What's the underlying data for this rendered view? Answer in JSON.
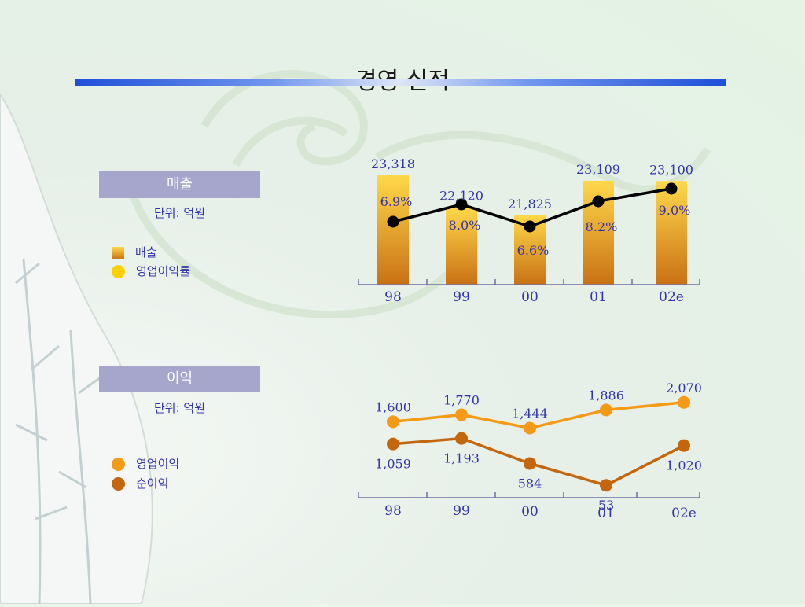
{
  "title": "경영 실적",
  "sections": {
    "sales": {
      "header": "매출",
      "unit": "단위: 억원",
      "legend": [
        "매출",
        "영업이익률"
      ]
    },
    "profit": {
      "header": "이익",
      "unit": "단위: 억원",
      "legend": [
        "영업이익",
        "순이익"
      ]
    }
  },
  "colors": {
    "bar_top": "#ffd84a",
    "bar_bottom": "#c97114",
    "margin_line": "#000000",
    "op_profit": "#f59a16",
    "net_profit": "#c4660d",
    "label": "#3333aa",
    "legend_margin_dot": "#ffd000"
  },
  "chart_data": [
    {
      "type": "bar",
      "categories": [
        "98",
        "99",
        "00",
        "01",
        "02e"
      ],
      "series": [
        {
          "name": "매출",
          "values": [
            23318,
            22120,
            21825,
            23109,
            23100
          ],
          "labels": [
            "23,318",
            "22,120",
            "21,825",
            "23,109",
            "23,100"
          ]
        },
        {
          "name": "영업이익률",
          "type": "line",
          "values": [
            6.9,
            8.0,
            6.6,
            8.2,
            9.0
          ],
          "labels": [
            "6.9%",
            "8.0%",
            "6.6%",
            "8.2%",
            "9.0%"
          ]
        }
      ]
    },
    {
      "type": "line",
      "categories": [
        "98",
        "99",
        "00",
        "01",
        "02e"
      ],
      "series": [
        {
          "name": "영업이익",
          "values": [
            1600,
            1770,
            1444,
            1886,
            2070
          ],
          "labels": [
            "1,600",
            "1,770",
            "1,444",
            "1,886",
            "2,070"
          ]
        },
        {
          "name": "순이익",
          "values": [
            1059,
            1193,
            584,
            53,
            1020
          ],
          "labels": [
            "1,059",
            "1,193",
            "584",
            "53",
            "1,020"
          ]
        }
      ]
    }
  ]
}
